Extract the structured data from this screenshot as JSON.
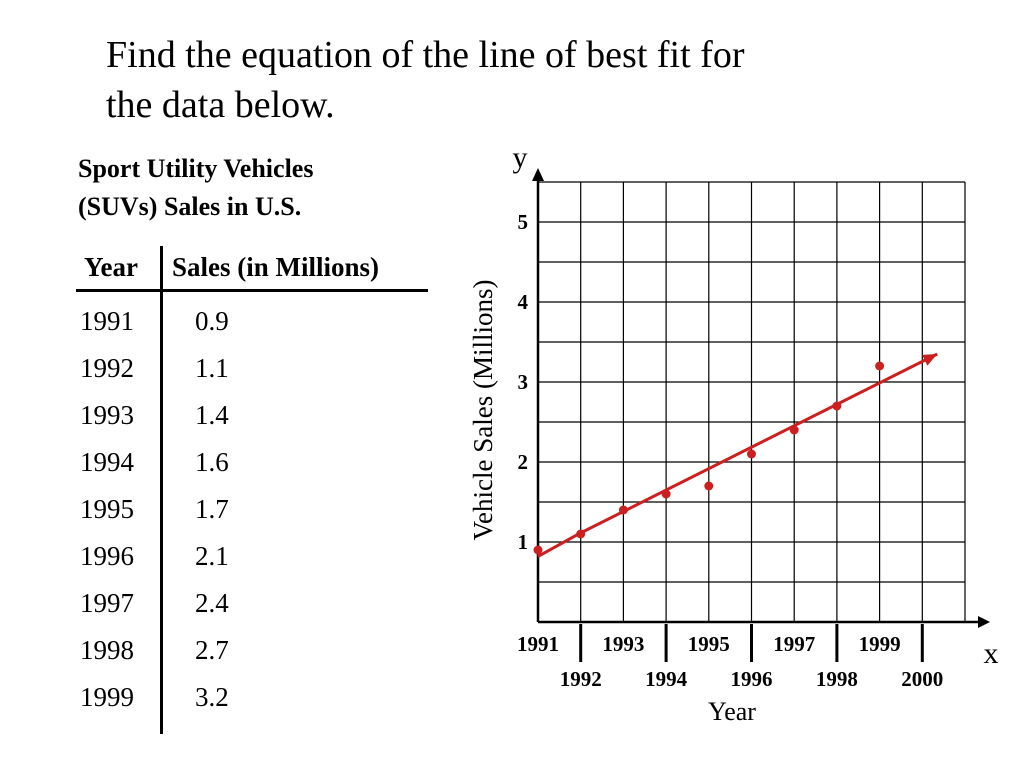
{
  "prompt": {
    "line1": "Find the equation of the line of best fit for",
    "line2": "the data below."
  },
  "table": {
    "title_line1": "Sport Utility Vehicles",
    "title_line2": "(SUVs) Sales in U.S.",
    "headers": {
      "year": "Year",
      "sales": "Sales (in Millions)"
    },
    "rows": [
      {
        "year": "1991",
        "sales": "0.9"
      },
      {
        "year": "1992",
        "sales": "1.1"
      },
      {
        "year": "1993",
        "sales": "1.4"
      },
      {
        "year": "1994",
        "sales": "1.6"
      },
      {
        "year": "1995",
        "sales": "1.7"
      },
      {
        "year": "1996",
        "sales": "2.1"
      },
      {
        "year": "1997",
        "sales": "2.4"
      },
      {
        "year": "1998",
        "sales": "2.7"
      },
      {
        "year": "1999",
        "sales": "3.2"
      }
    ]
  },
  "chart_data": {
    "type": "scatter",
    "title": "",
    "xlabel": "Year",
    "ylabel": "Vehicle Sales (Millions)",
    "x_axis_letter": "x",
    "y_axis_letter": "y",
    "xlim": [
      1991,
      2001
    ],
    "ylim": [
      0,
      5.5
    ],
    "grid": true,
    "x_ticks_row1": [
      "1991",
      "1993",
      "1995",
      "1997",
      "1999"
    ],
    "x_ticks_row2": [
      "1992",
      "1994",
      "1996",
      "1998",
      "2000"
    ],
    "y_ticks": [
      "1",
      "2",
      "3",
      "4",
      "5"
    ],
    "series": [
      {
        "x": [
          1991,
          1992,
          1993,
          1994,
          1995,
          1996,
          1997,
          1998,
          1999
        ],
        "y": [
          0.9,
          1.1,
          1.4,
          1.6,
          1.7,
          2.1,
          2.4,
          2.7,
          3.2
        ]
      }
    ],
    "fit_line": {
      "x": [
        1991,
        1991.95,
        2000.35
      ],
      "y": [
        0.82,
        1.1,
        3.35
      ]
    },
    "colors": {
      "points": "#cc1f1f",
      "fit_line": "#cc1f1f",
      "grid": "#000000"
    }
  }
}
